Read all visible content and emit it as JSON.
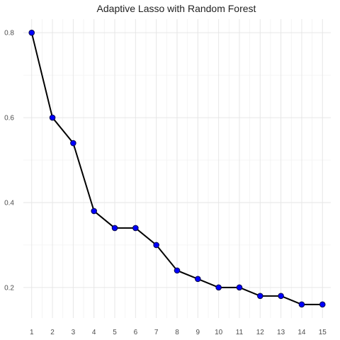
{
  "chart_data": {
    "type": "line",
    "title": "Adaptive Lasso with Random Forest",
    "xlabel": "",
    "ylabel": "",
    "x": [
      1,
      2,
      3,
      4,
      5,
      6,
      7,
      8,
      9,
      10,
      11,
      12,
      13,
      14,
      15
    ],
    "series": [
      {
        "values": [
          0.8,
          0.6,
          0.54,
          0.38,
          0.34,
          0.34,
          0.3,
          0.24,
          0.22,
          0.2,
          0.2,
          0.18,
          0.18,
          0.16,
          0.16
        ]
      }
    ],
    "x_ticks": [
      "1",
      "2",
      "3",
      "4",
      "5",
      "6",
      "7",
      "8",
      "9",
      "10",
      "11",
      "12",
      "13",
      "14",
      "15"
    ],
    "y_ticks": [
      0.2,
      0.4,
      0.6,
      0.8
    ],
    "y_tick_labels": [
      "0.2",
      "0.4",
      "0.6",
      "0.8"
    ],
    "xlim": [
      0.6,
      15.4
    ],
    "ylim": [
      0.128,
      0.832
    ],
    "grid": true,
    "legend": "none",
    "colors": {
      "line": "#000000",
      "point": "#0000ff",
      "grid_major": "#e6e6e6",
      "grid_minor": "#f2f2f2",
      "text": "#4d4d4d"
    }
  }
}
